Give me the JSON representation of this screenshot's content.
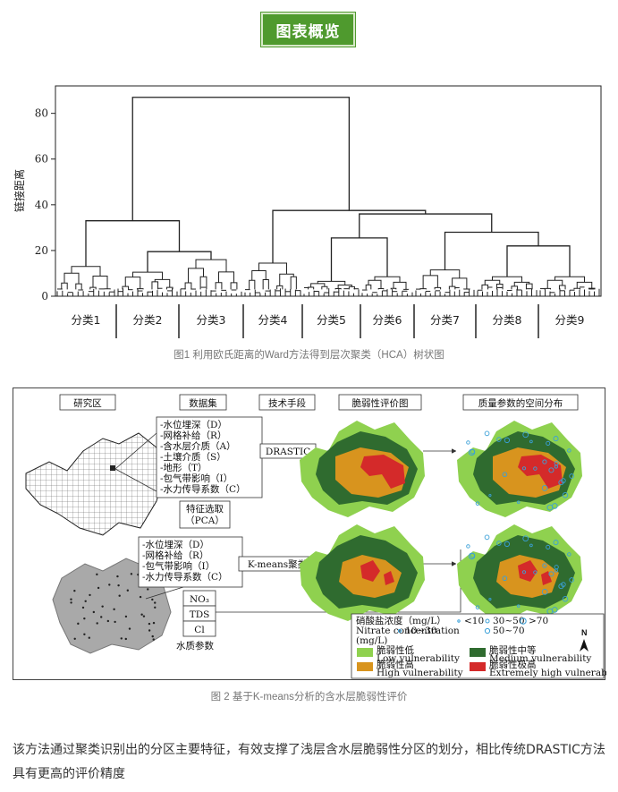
{
  "section_badge": "图表概览",
  "figure1": {
    "caption": "图1 利用欧氏距离的Ward方法得到层次聚类（HCA）树状图",
    "ylabel": "链接距离",
    "yticks": [
      "0",
      "20",
      "40",
      "60",
      "80"
    ],
    "cluster_labels": [
      "分类1",
      "分类2",
      "分类3",
      "分类4",
      "分类5",
      "分类6",
      "分类7",
      "分类8",
      "分类9"
    ]
  },
  "chart_data": {
    "type": "dendrogram",
    "ylabel": "链接距离",
    "ylim": [
      0,
      92
    ],
    "categories": [
      "分类1",
      "分类2",
      "分类3",
      "分类4",
      "分类5",
      "分类6",
      "分类7",
      "分类8",
      "分类9"
    ],
    "merges": [
      {
        "members": [
          "分类1",
          "分类2",
          "分类3"
        ],
        "height": 33
      },
      {
        "members": [
          "分类2",
          "分类3"
        ],
        "height": 19.5
      },
      {
        "members": [
          "分类5",
          "分类6"
        ],
        "height": 25.5
      },
      {
        "members": [
          "分类8",
          "分类9"
        ],
        "height": 22
      },
      {
        "members": [
          "分类7",
          "分类8",
          "分类9"
        ],
        "height": 28
      },
      {
        "members": [
          "分类5",
          "分类6",
          "分类7",
          "分类8",
          "分类9"
        ],
        "height": 36
      },
      {
        "members": [
          "分类4",
          "分类5",
          "分类6",
          "分类7",
          "分类8",
          "分类9"
        ],
        "height": 37.5
      },
      {
        "members": [
          "all"
        ],
        "height": 87
      }
    ],
    "cluster_heights": [
      13,
      10.5,
      16,
      14.5,
      6.5,
      8.5,
      11.5,
      8.5,
      8.5
    ]
  },
  "figure2": {
    "caption": "图 2 基于K-means分析的含水层脆弱性评价",
    "headers": [
      "研究区",
      "数据集",
      "技术手段",
      "脆弱性评价图",
      "质量参数的空间分布"
    ],
    "dataset1": [
      "-水位埋深（D）",
      "-网格补给（R）",
      "-含水层介质（A）",
      "-土壤介质（S）",
      "-地形（T）",
      "-包气带影响（I）",
      "-水力传导系数（C）"
    ],
    "dataset2": [
      "-水位埋深（D）",
      "-网格补给（R）",
      "-包气带影响（I）",
      "-水力传导系数（C）"
    ],
    "method1": "DRASTIC",
    "method2": "K-means聚类",
    "pca": [
      "特征选取",
      "（PCA）"
    ],
    "water_params": [
      "NO₃",
      "TDS",
      "Cl"
    ],
    "water_quality_label": "水质参数",
    "legend": {
      "nitrate_cn": "硝酸盐浓度（mg/L）",
      "nitrate_en": "Nitrate concentration",
      "unit": "(mg/L)",
      "ranges": [
        "<10",
        "10~30",
        "30~50",
        "50~70",
        ">70"
      ],
      "classes": [
        {
          "cn": "脆弱性低",
          "en": "Low vulnerability",
          "color": "#8fd14f"
        },
        {
          "cn": "脆弱性中等",
          "en": "Medium vulnerability",
          "color": "#2f6b2f"
        },
        {
          "cn": "脆弱性高",
          "en": "High vulnerability",
          "color": "#d8941e"
        },
        {
          "cn": "脆弱性极高",
          "en": "Extremely high vulnerability",
          "color": "#d42a2a"
        }
      ],
      "north": "N"
    }
  },
  "body_text": "该方法通过聚类识别出的分区主要特征，有效支撑了浅层含水层脆弱性分区的划分，相比传统DRASTIC方法具有更高的评价精度"
}
